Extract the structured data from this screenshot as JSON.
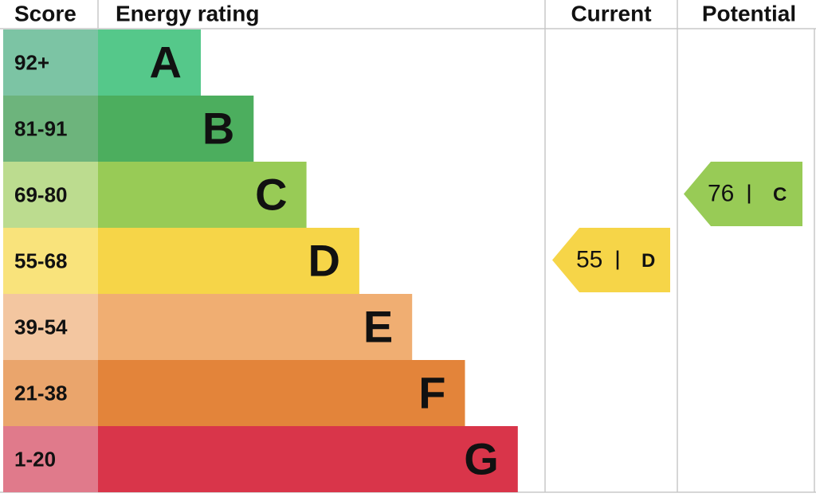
{
  "headers": {
    "score": "Score",
    "rating": "Energy rating",
    "current": "Current",
    "potential": "Potential"
  },
  "bands": [
    {
      "score": "92+",
      "letter": "A",
      "color": "#55c88a",
      "score_color": "#7cc4a4"
    },
    {
      "score": "81-91",
      "letter": "B",
      "color": "#4cae5e",
      "score_color": "#6db47c"
    },
    {
      "score": "69-80",
      "letter": "C",
      "color": "#98cb56",
      "score_color": "#bcdc8f"
    },
    {
      "score": "55-68",
      "letter": "D",
      "color": "#f6d548",
      "score_color": "#f9e37b"
    },
    {
      "score": "39-54",
      "letter": "E",
      "color": "#f0ae72",
      "score_color": "#f3c6a0"
    },
    {
      "score": "21-38",
      "letter": "F",
      "color": "#e3843a",
      "score_color": "#eaa56c"
    },
    {
      "score": "1-20",
      "letter": "G",
      "color": "#d9354a",
      "score_color": "#e07a8b"
    }
  ],
  "current": {
    "value": 55,
    "letter": "D"
  },
  "potential": {
    "value": 76,
    "letter": "C"
  }
}
